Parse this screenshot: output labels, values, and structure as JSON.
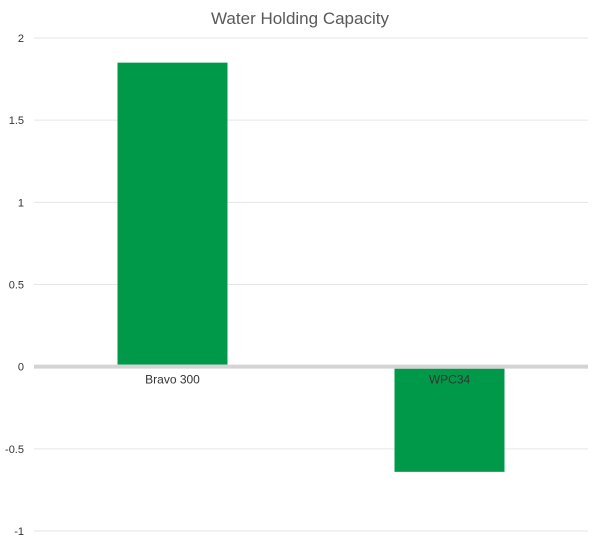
{
  "chart_data": {
    "type": "bar",
    "title": "Water Holding Capacity",
    "categories": [
      "Bravo 300",
      "WPC34"
    ],
    "series": [
      {
        "name": "Water Holding Capacity",
        "values": [
          1.85,
          -0.64
        ]
      }
    ],
    "xlabel": "",
    "ylabel": "",
    "ylim": [
      -1,
      2
    ],
    "yticks": [
      2,
      1.5,
      1,
      0.5,
      0,
      -0.5,
      -1
    ],
    "ytick_labels": [
      "2",
      "1.5",
      "1",
      "0.5",
      "0",
      "-0.5",
      "-1"
    ],
    "grid": true,
    "legend": "none",
    "bar_color": "#00994a"
  }
}
